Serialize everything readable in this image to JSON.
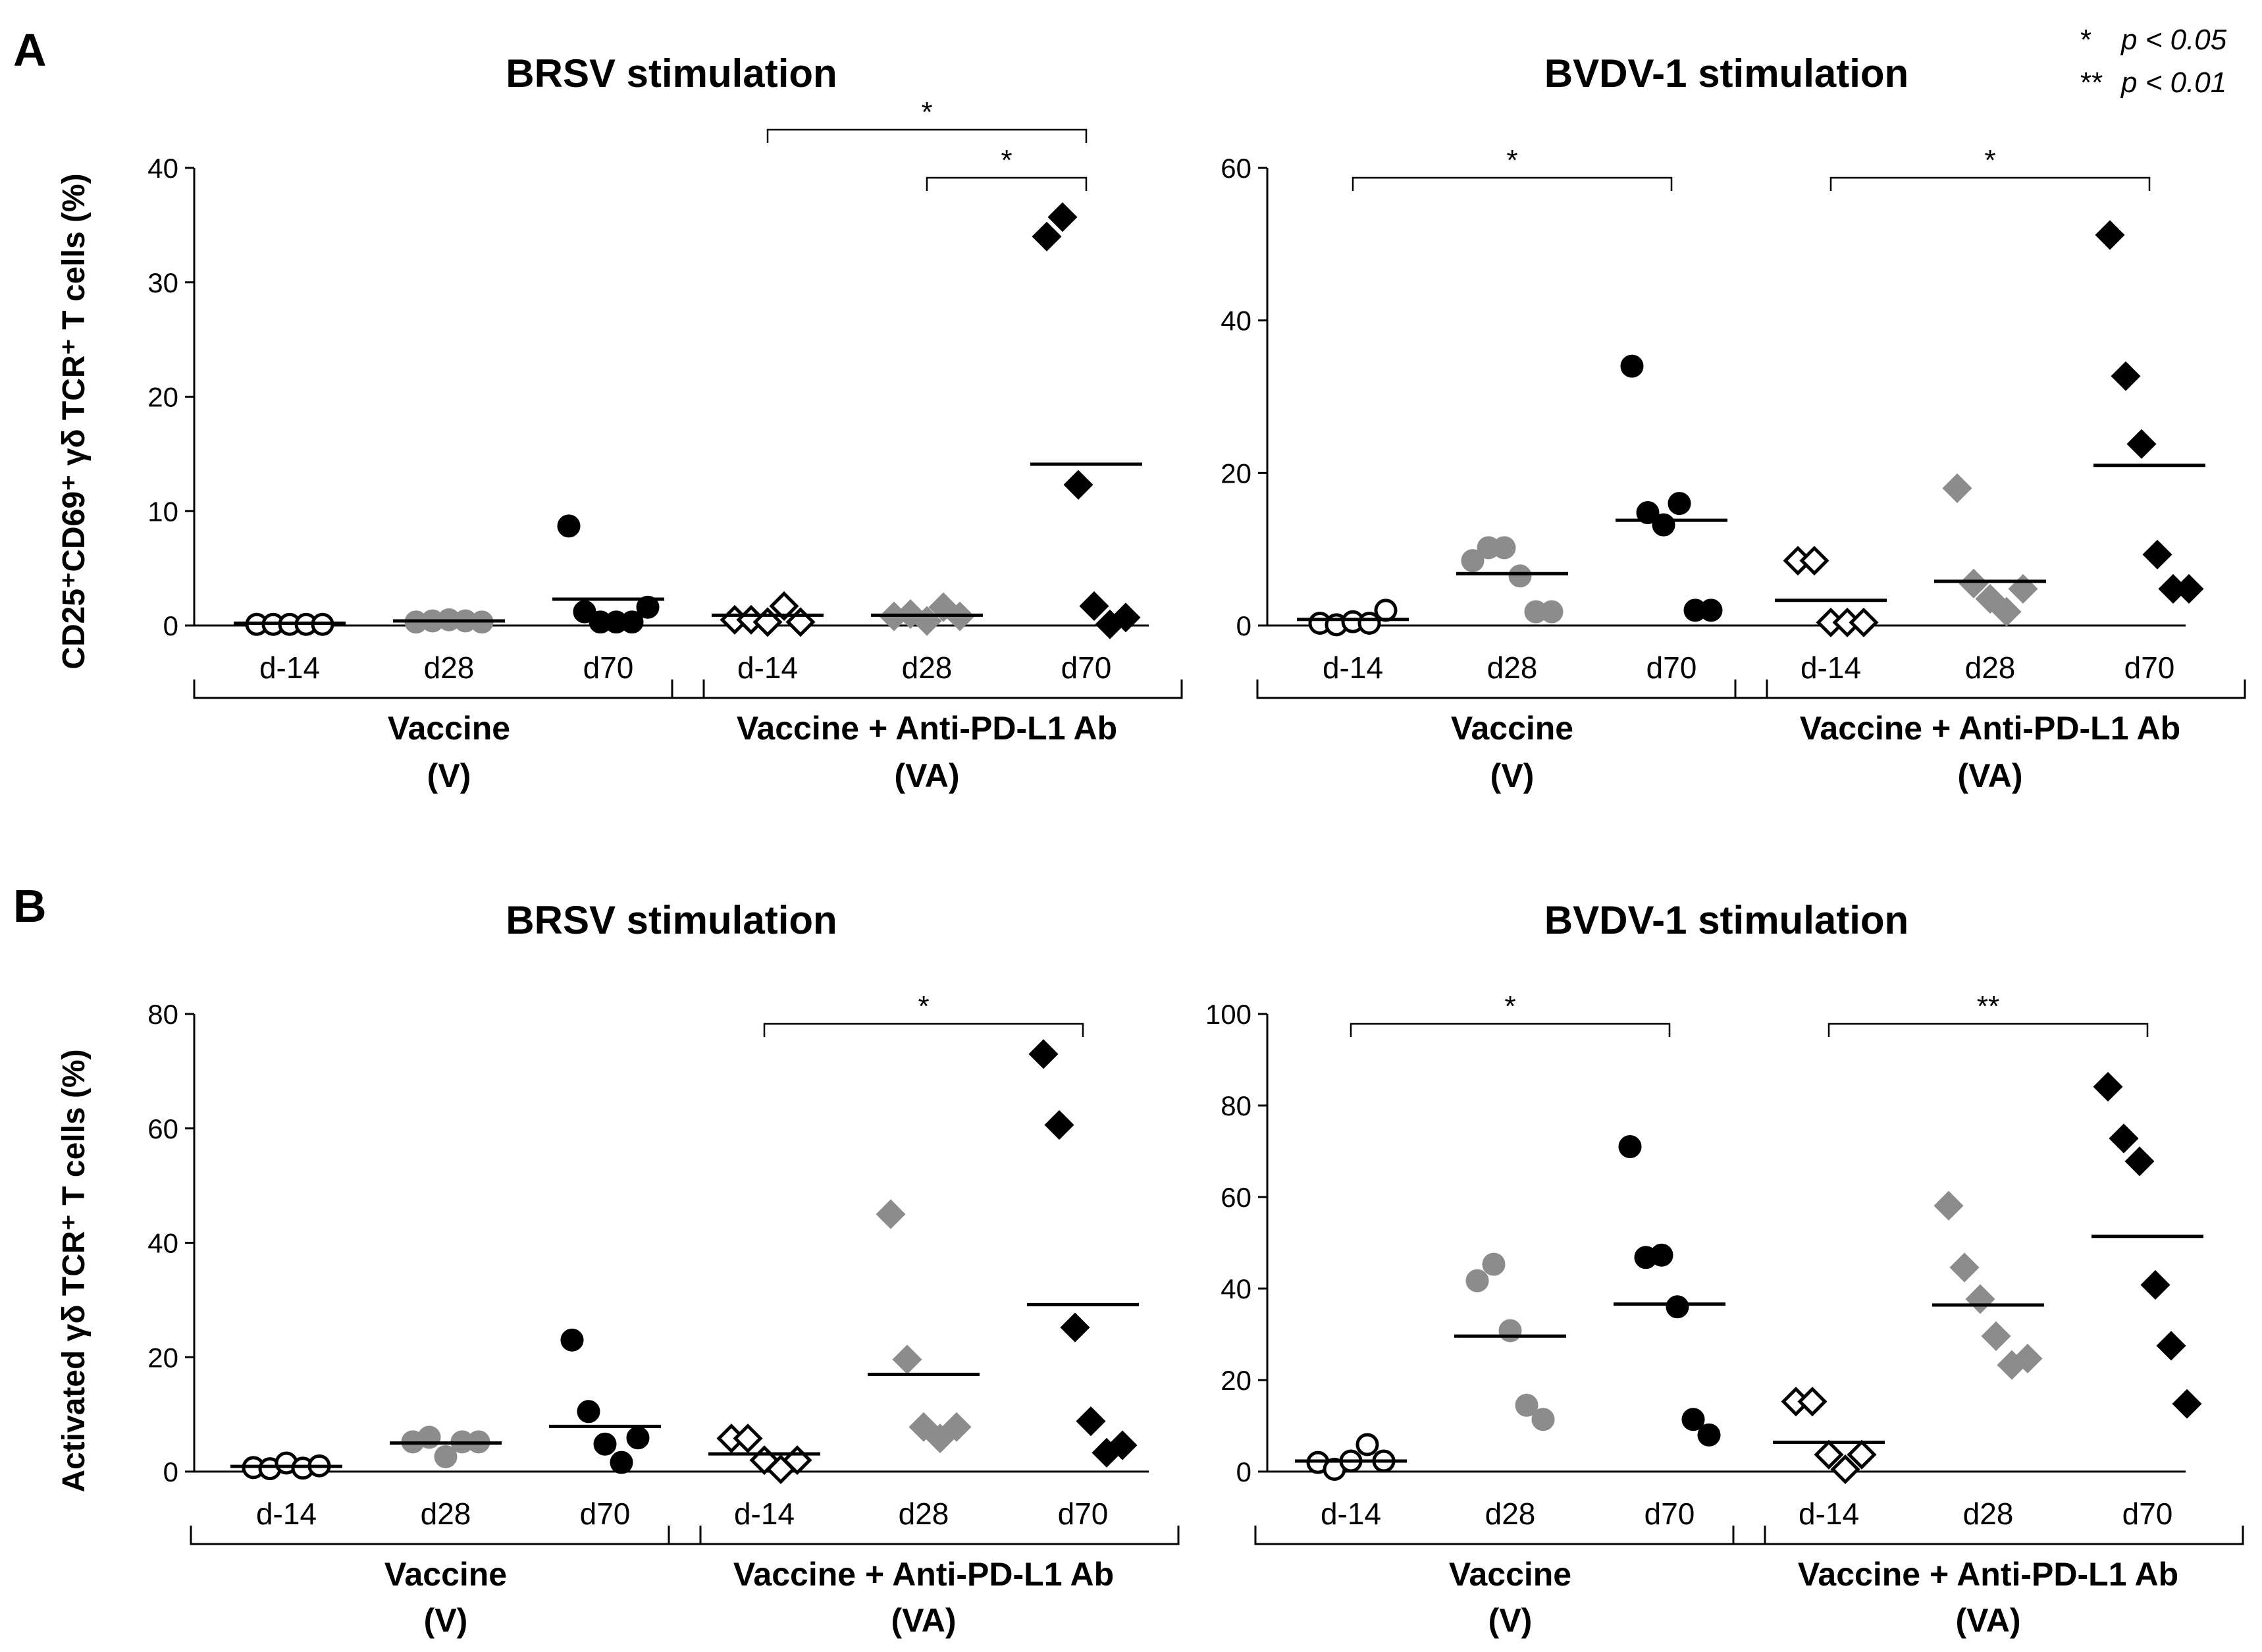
{
  "legend": {
    "single_star": "*",
    "single_text": "p < 0.05",
    "double_star": "**",
    "double_text": "p < 0.01"
  },
  "rows": [
    {
      "letter": "A",
      "ylabel": "CD25⁺CD69⁺ γδ TCR⁺ T cells (%)"
    },
    {
      "letter": "B",
      "ylabel": "Activated γδ TCR⁺ T cells (%)"
    }
  ],
  "groups": [
    {
      "name": "Vaccine",
      "abbr": "(V)"
    },
    {
      "name": "Vaccine + Anti-PD-L1 Ab",
      "abbr": "(VA)"
    }
  ],
  "colors": {
    "d-14": "#ffffff",
    "d28": "#8c8c8c",
    "d70": "#000000"
  },
  "chart_data": [
    {
      "type": "scatter",
      "panel": "A",
      "title": "BRSV stimulation",
      "ylabel": "CD25⁺CD69⁺ γδ TCR⁺ T cells (%)",
      "ylim": [
        0,
        40
      ],
      "yticks": [
        0,
        10,
        20,
        30,
        40
      ],
      "categories": [
        "d-14",
        "d28",
        "d70",
        "d-14",
        "d28",
        "d70"
      ],
      "series": [
        {
          "group": "V",
          "day": "d-14",
          "marker": "circle",
          "fill": "#ffffff",
          "values": [
            0.1,
            0.1,
            0.1,
            0.1,
            0.1
          ],
          "median": 0.2
        },
        {
          "group": "V",
          "day": "d28",
          "marker": "circle",
          "fill": "#8c8c8c",
          "values": [
            0.3,
            0.4,
            0.5,
            0.4,
            0.3
          ],
          "median": 0.4
        },
        {
          "group": "V",
          "day": "d70",
          "marker": "circle",
          "fill": "#000000",
          "values": [
            8.7,
            1.2,
            0.3,
            0.3,
            0.3,
            1.6
          ],
          "median": 2.3
        },
        {
          "group": "VA",
          "day": "d-14",
          "marker": "diamond",
          "fill": "#ffffff",
          "values": [
            0.5,
            0.5,
            0.3,
            1.7,
            0.3
          ],
          "median": 0.9
        },
        {
          "group": "VA",
          "day": "d28",
          "marker": "diamond",
          "fill": "#8c8c8c",
          "values": [
            0.8,
            1.0,
            0.4,
            1.6,
            0.8
          ],
          "median": 0.9
        },
        {
          "group": "VA",
          "day": "d70",
          "marker": "diamond",
          "fill": "#000000",
          "values": [
            34.0,
            35.7,
            12.3,
            1.7,
            0.1,
            0.7
          ],
          "median": 14.1
        }
      ],
      "significance": [
        {
          "from": 3,
          "to": 5,
          "label": "*"
        },
        {
          "from": 4,
          "to": 5,
          "label": "*"
        }
      ]
    },
    {
      "type": "scatter",
      "panel": "A",
      "title": "BVDV-1 stimulation",
      "ylabel": "",
      "ylim": [
        0,
        60
      ],
      "yticks": [
        0,
        20,
        40,
        60
      ],
      "categories": [
        "d-14",
        "d28",
        "d70",
        "d-14",
        "d28",
        "d70"
      ],
      "series": [
        {
          "group": "V",
          "day": "d-14",
          "marker": "circle",
          "fill": "#ffffff",
          "values": [
            0.3,
            0.1,
            0.5,
            0.3,
            2.0
          ],
          "median": 0.8
        },
        {
          "group": "V",
          "day": "d28",
          "marker": "circle",
          "fill": "#8c8c8c",
          "values": [
            8.5,
            10.2,
            10.2,
            6.5,
            1.8,
            1.8
          ],
          "median": 6.8
        },
        {
          "group": "V",
          "day": "d70",
          "marker": "circle",
          "fill": "#000000",
          "values": [
            34.0,
            14.8,
            13.2,
            16.0,
            2.0,
            2.0
          ],
          "median": 13.8
        },
        {
          "group": "VA",
          "day": "d-14",
          "marker": "diamond",
          "fill": "#ffffff",
          "values": [
            8.5,
            8.5,
            0.4,
            0.4,
            0.4
          ],
          "median": 3.3
        },
        {
          "group": "VA",
          "day": "d28",
          "marker": "diamond",
          "fill": "#8c8c8c",
          "values": [
            18.0,
            5.5,
            3.5,
            1.8,
            4.8
          ],
          "median": 5.8
        },
        {
          "group": "VA",
          "day": "d70",
          "marker": "diamond",
          "fill": "#000000",
          "values": [
            51.2,
            32.7,
            23.8,
            9.3,
            4.8,
            4.8
          ],
          "median": 21.0
        }
      ],
      "significance": [
        {
          "from": 0,
          "to": 2,
          "label": "*"
        },
        {
          "from": 3,
          "to": 5,
          "label": "*"
        }
      ]
    },
    {
      "type": "scatter",
      "panel": "B",
      "title": "BRSV stimulation",
      "ylabel": "Activated γδ TCR⁺ T cells (%)",
      "ylim": [
        0,
        80
      ],
      "yticks": [
        0,
        20,
        40,
        60,
        80
      ],
      "categories": [
        "d-14",
        "d28",
        "d70",
        "d-14",
        "d28",
        "d70"
      ],
      "series": [
        {
          "group": "V",
          "day": "d-14",
          "marker": "circle",
          "fill": "#ffffff",
          "values": [
            0.7,
            0.5,
            1.5,
            0.6,
            1.0
          ],
          "median": 0.9
        },
        {
          "group": "V",
          "day": "d28",
          "marker": "circle",
          "fill": "#8c8c8c",
          "values": [
            5.2,
            6.0,
            2.6,
            5.2,
            5.2
          ],
          "median": 5.0
        },
        {
          "group": "V",
          "day": "d70",
          "marker": "circle",
          "fill": "#000000",
          "values": [
            23.0,
            10.5,
            4.8,
            1.6,
            5.9
          ],
          "median": 7.9
        },
        {
          "group": "VA",
          "day": "d-14",
          "marker": "diamond",
          "fill": "#ffffff",
          "values": [
            5.8,
            5.8,
            2.0,
            0.4,
            2.0
          ],
          "median": 3.1
        },
        {
          "group": "VA",
          "day": "d28",
          "marker": "diamond",
          "fill": "#8c8c8c",
          "values": [
            45.0,
            19.6,
            7.8,
            5.8,
            7.8
          ],
          "median": 17.0
        },
        {
          "group": "VA",
          "day": "d70",
          "marker": "diamond",
          "fill": "#000000",
          "values": [
            73.0,
            60.6,
            25.2,
            8.8,
            3.3,
            4.6
          ],
          "median": 29.2
        }
      ],
      "significance": [
        {
          "from": 3,
          "to": 5,
          "label": "*"
        }
      ]
    },
    {
      "type": "scatter",
      "panel": "B",
      "title": "BVDV-1 stimulation",
      "ylabel": "",
      "ylim": [
        0,
        100
      ],
      "yticks": [
        0,
        20,
        40,
        60,
        80,
        100
      ],
      "categories": [
        "d-14",
        "d28",
        "d70",
        "d-14",
        "d28",
        "d70"
      ],
      "series": [
        {
          "group": "V",
          "day": "d-14",
          "marker": "circle",
          "fill": "#ffffff",
          "values": [
            2.0,
            0.5,
            2.3,
            5.9,
            2.3
          ],
          "median": 2.3
        },
        {
          "group": "V",
          "day": "d28",
          "marker": "circle",
          "fill": "#8c8c8c",
          "values": [
            41.7,
            45.3,
            30.8,
            14.5,
            11.4
          ],
          "median": 29.6
        },
        {
          "group": "V",
          "day": "d70",
          "marker": "circle",
          "fill": "#000000",
          "values": [
            71.0,
            46.8,
            47.3,
            36.0,
            11.4,
            8.0
          ],
          "median": 36.6
        },
        {
          "group": "VA",
          "day": "d-14",
          "marker": "diamond",
          "fill": "#ffffff",
          "values": [
            15.3,
            15.3,
            3.7,
            0.5,
            3.7
          ],
          "median": 6.4
        },
        {
          "group": "VA",
          "day": "d28",
          "marker": "diamond",
          "fill": "#8c8c8c",
          "values": [
            58.1,
            44.6,
            37.7,
            29.6,
            23.3,
            24.7
          ],
          "median": 36.4
        },
        {
          "group": "VA",
          "day": "d70",
          "marker": "diamond",
          "fill": "#000000",
          "values": [
            84.1,
            72.8,
            67.8,
            40.8,
            27.5,
            14.8
          ],
          "median": 51.4
        }
      ],
      "significance": [
        {
          "from": 0,
          "to": 2,
          "label": "*"
        },
        {
          "from": 3,
          "to": 5,
          "label": "**"
        }
      ]
    }
  ]
}
